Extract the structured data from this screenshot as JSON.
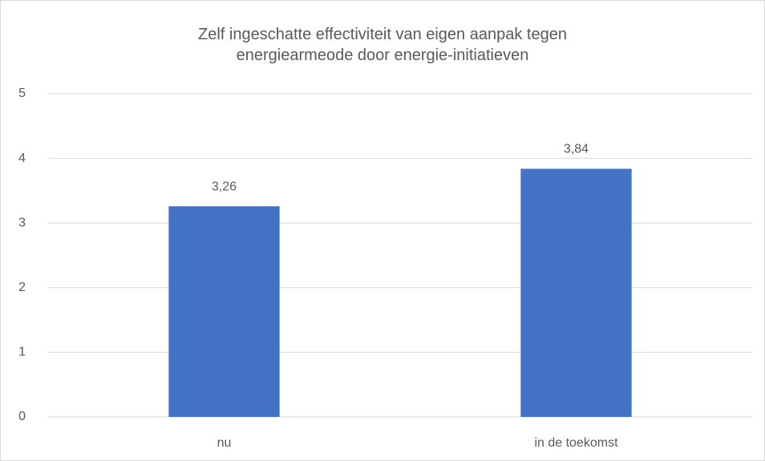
{
  "chart_data": {
    "type": "bar",
    "title": "Zelf ingeschatte effectiviteit van eigen aanpak tegen energiearmeode door energie-initiatieven",
    "categories": [
      "nu",
      "in de toekomst"
    ],
    "values": [
      3.26,
      3.84
    ],
    "value_labels": [
      "3,26",
      "3,84"
    ],
    "color": "#4472c4",
    "ylim": [
      0,
      5
    ],
    "yticks": [
      0,
      1,
      2,
      3,
      4,
      5
    ],
    "grid": true
  }
}
